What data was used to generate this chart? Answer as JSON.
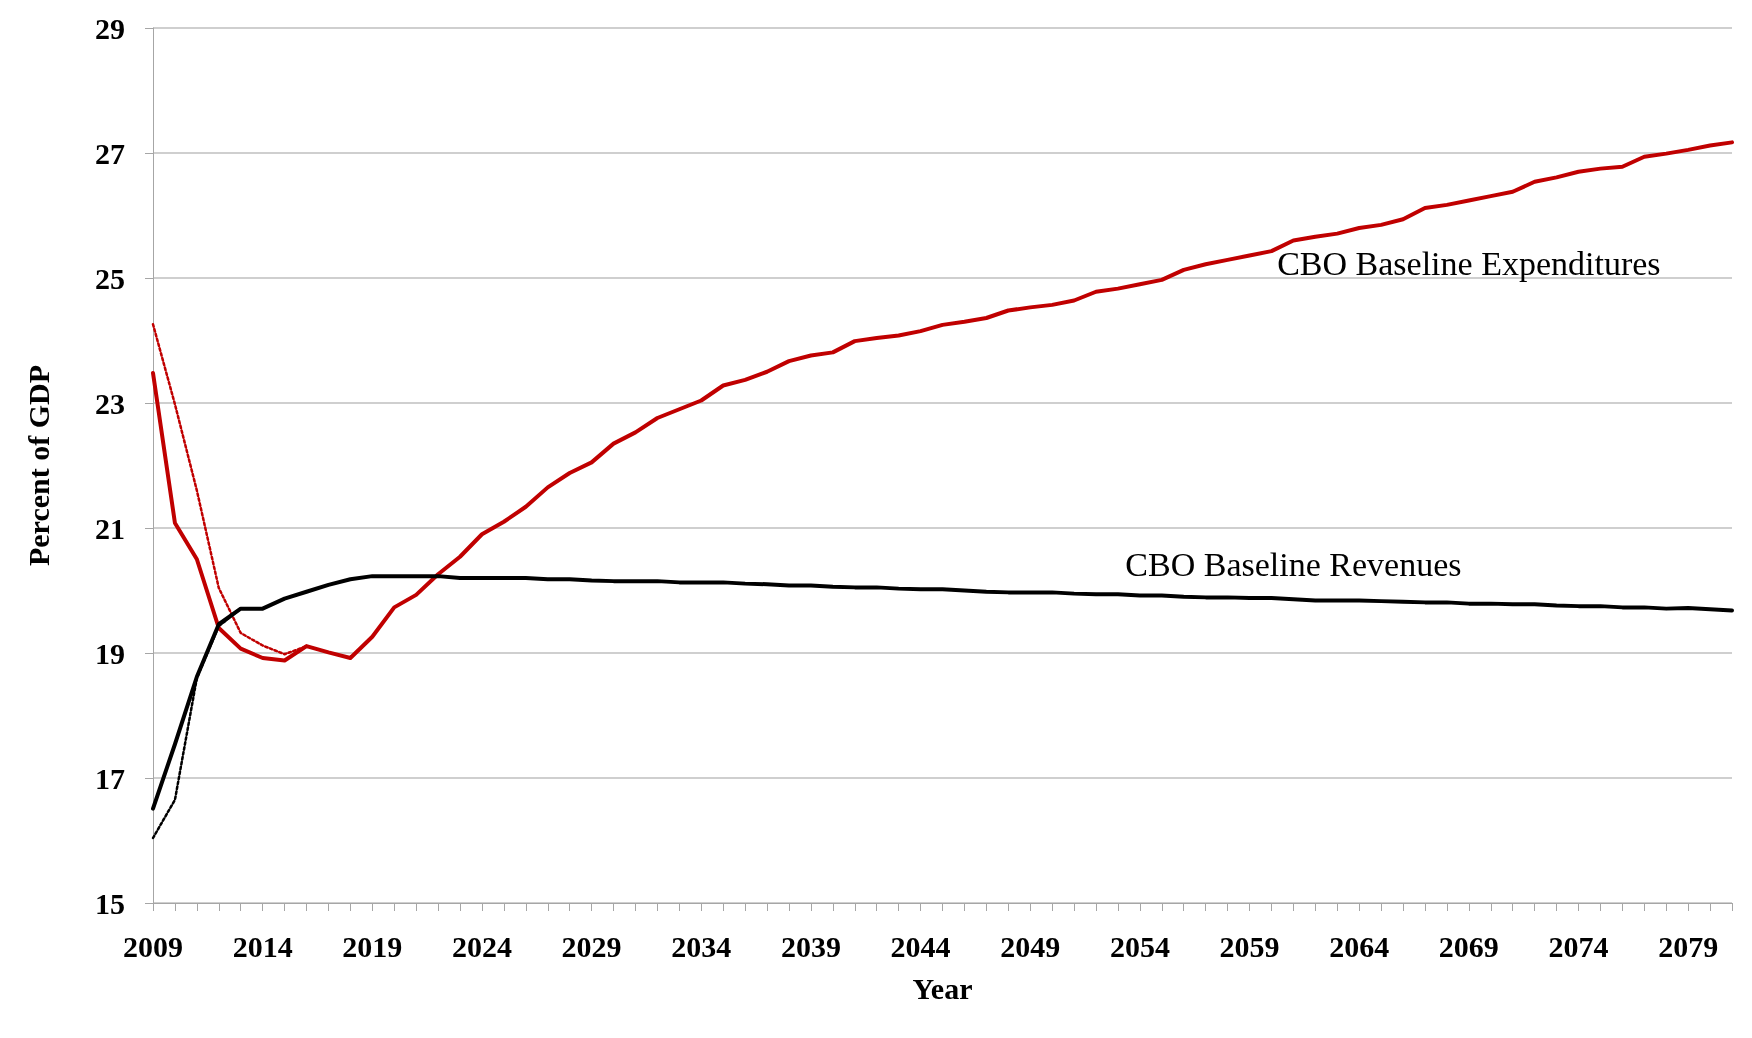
{
  "chart_data": {
    "type": "line",
    "xlabel": "Year",
    "ylabel": "Percent of GDP",
    "categories": [
      "2009",
      null,
      null,
      null,
      null,
      "2014",
      null,
      null,
      null,
      null,
      "2019",
      null,
      null,
      null,
      null,
      "2024",
      null,
      null,
      null,
      null,
      "2029",
      null,
      null,
      null,
      null,
      "2034",
      null,
      null,
      null,
      null,
      "2039",
      null,
      null,
      null,
      null,
      "2044",
      null,
      null,
      null,
      null,
      "2049",
      null,
      null,
      null,
      null,
      "2054",
      null,
      null,
      null,
      null,
      "2059",
      null,
      null,
      null,
      null,
      "2064",
      null,
      null,
      null,
      null,
      "2069",
      null,
      null,
      null,
      null,
      "2074",
      null,
      null,
      null,
      null,
      "2079",
      null,
      null
    ],
    "ylim": [
      15,
      29
    ],
    "yticks": [
      15,
      17,
      19,
      21,
      23,
      25,
      27,
      29
    ],
    "grid": "y",
    "legend": false,
    "marker": "none",
    "series": [
      {
        "name": "CBO Baseline Expenditures",
        "color": "#c00000",
        "line_style": "solid",
        "values": [
          23.48,
          21.08,
          20.5,
          19.4,
          19.07,
          18.92,
          18.88,
          19.11,
          19.01,
          18.92,
          19.26,
          19.73,
          19.93,
          20.26,
          20.54,
          20.9,
          21.1,
          21.34,
          21.65,
          21.88,
          22.05,
          22.35,
          22.53,
          22.76,
          22.9,
          23.04,
          23.28,
          23.37,
          23.5,
          23.67,
          23.76,
          23.81,
          23.99,
          24.04,
          24.08,
          24.15,
          24.25,
          24.3,
          24.36,
          24.48,
          24.53,
          24.57,
          24.64,
          24.78,
          24.83,
          24.9,
          24.97,
          25.13,
          25.22,
          25.29,
          25.36,
          25.43,
          25.6,
          25.66,
          25.71,
          25.8,
          25.85,
          25.94,
          26.12,
          26.17,
          26.24,
          26.31,
          26.38,
          26.54,
          26.61,
          26.7,
          26.75,
          26.78,
          26.94,
          26.99,
          27.05,
          27.12,
          27.17
        ]
      },
      {
        "color": "#c00000",
        "line_style": "dotted",
        "values": [
          24.26,
          22.98,
          21.6,
          20.04,
          19.32,
          19.12,
          18.98,
          19.11,
          null,
          null,
          null,
          null,
          null,
          null,
          null,
          null,
          null,
          null,
          null,
          null,
          null,
          null,
          null,
          null,
          null,
          null,
          null,
          null,
          null,
          null,
          null,
          null,
          null,
          null,
          null,
          null,
          null,
          null,
          null,
          null,
          null,
          null,
          null,
          null,
          null,
          null,
          null,
          null,
          null,
          null,
          null,
          null,
          null,
          null,
          null,
          null,
          null,
          null,
          null,
          null,
          null,
          null,
          null,
          null,
          null,
          null,
          null,
          null,
          null,
          null,
          null,
          null,
          null
        ]
      },
      {
        "name": "CBO Baseline Revenues",
        "color": "#000000",
        "line_style": "solid",
        "values": [
          16.51,
          17.54,
          18.62,
          19.46,
          19.71,
          19.71,
          19.87,
          19.98,
          20.09,
          20.18,
          20.23,
          20.23,
          20.23,
          20.23,
          20.2,
          20.2,
          20.2,
          20.2,
          20.18,
          20.18,
          20.16,
          20.15,
          20.15,
          20.15,
          20.13,
          20.13,
          20.13,
          20.11,
          20.1,
          20.08,
          20.08,
          20.06,
          20.05,
          20.05,
          20.03,
          20.02,
          20.02,
          20.0,
          19.98,
          19.97,
          19.97,
          19.97,
          19.95,
          19.94,
          19.94,
          19.92,
          19.92,
          19.9,
          19.89,
          19.89,
          19.88,
          19.88,
          19.86,
          19.84,
          19.84,
          19.84,
          19.83,
          19.82,
          19.81,
          19.81,
          19.79,
          19.79,
          19.78,
          19.78,
          19.76,
          19.75,
          19.75,
          19.73,
          19.73,
          19.71,
          19.72,
          19.7,
          19.68
        ]
      },
      {
        "color": "#000000",
        "line_style": "dotted",
        "values": [
          16.04,
          16.65,
          18.6,
          19.43,
          19.71,
          null,
          null,
          null,
          null,
          null,
          null,
          null,
          null,
          null,
          null,
          null,
          null,
          null,
          null,
          null,
          null,
          null,
          null,
          null,
          null,
          null,
          null,
          null,
          null,
          null,
          null,
          null,
          null,
          null,
          null,
          null,
          null,
          null,
          null,
          null,
          null,
          null,
          null,
          null,
          null,
          null,
          null,
          null,
          null,
          null,
          null,
          null,
          null,
          null,
          null,
          null,
          null,
          null,
          null,
          null,
          null,
          null,
          null,
          null,
          null,
          null,
          null,
          null,
          null,
          null,
          null,
          null,
          null
        ]
      }
    ]
  }
}
